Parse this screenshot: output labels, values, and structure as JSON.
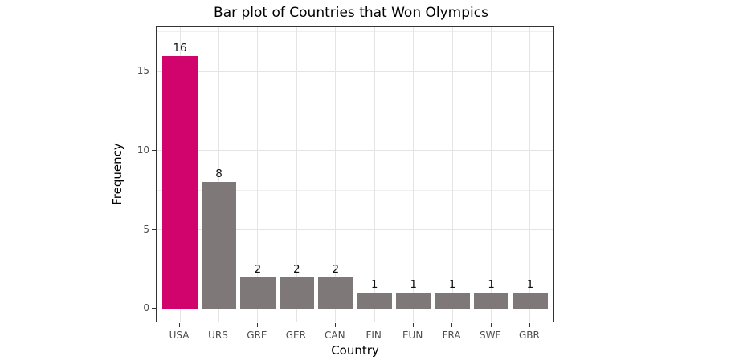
{
  "figure": {
    "title": "Bar plot of Countries that Won Olympics"
  },
  "chart_data": {
    "type": "bar",
    "title": "Bar plot of Countries that Won Olympics",
    "xlabel": "Country",
    "ylabel": "Frequency",
    "categories": [
      "USA",
      "URS",
      "GRE",
      "GER",
      "CAN",
      "FIN",
      "EUN",
      "FRA",
      "SWE",
      "GBR"
    ],
    "values": [
      16,
      8,
      2,
      2,
      2,
      1,
      1,
      1,
      1,
      1
    ],
    "bar_value_labels": [
      "16",
      "8",
      "2",
      "2",
      "2",
      "1",
      "1",
      "1",
      "1",
      "1"
    ],
    "highlight_category": "USA",
    "y_tick_labels": [
      "0",
      "5",
      "10",
      "15"
    ],
    "y_ticks": [
      0,
      5,
      10,
      15
    ],
    "y_minor_gridlines": [
      2.5,
      7.5,
      12.5,
      17.5
    ],
    "ylim": [
      -0.8,
      17.8
    ],
    "bar_relative_width": 0.9,
    "edge_padding_categories": 0.6,
    "grid": "on",
    "legend": "none",
    "colors": {
      "highlight_bar": "#D0046C",
      "default_bar": "#7E7878",
      "grid_major": "#E4E4E4",
      "grid_minor": "#EFEFEF",
      "panel_border": "#333333",
      "tick_mark": "#333333",
      "tick_label": "#4D4D4D",
      "text": "#000000",
      "background": "#FFFFFF"
    }
  }
}
